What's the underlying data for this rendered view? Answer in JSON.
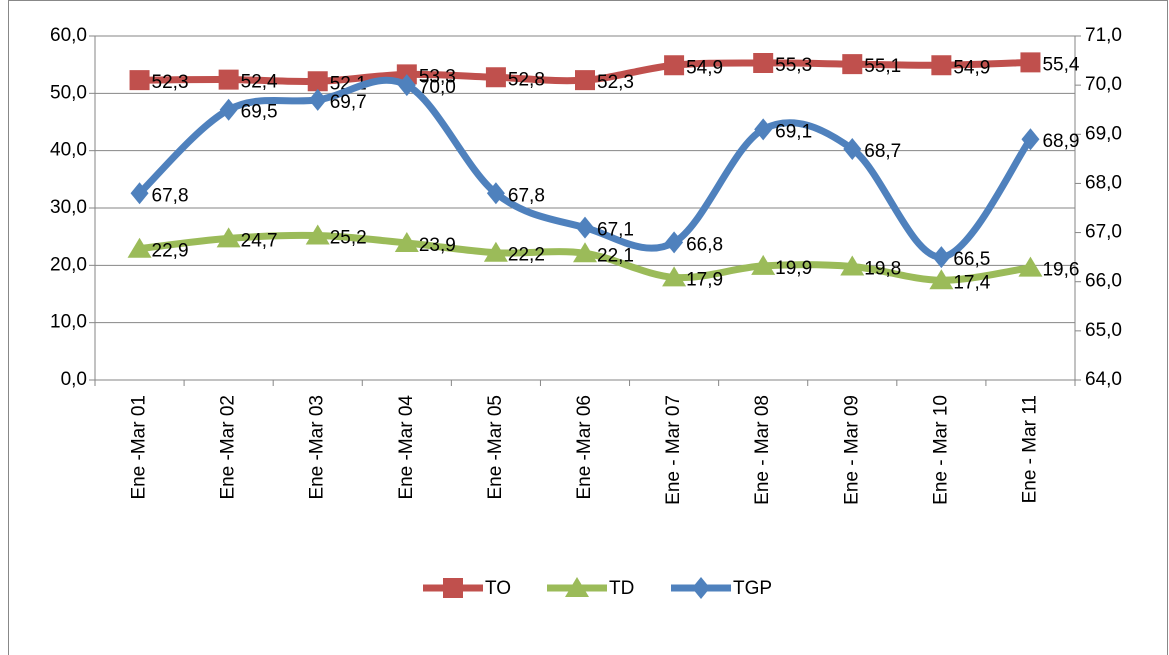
{
  "chart_data": {
    "type": "line",
    "smooth": true,
    "legend": "bottom",
    "grid": true,
    "categories": [
      "Ene -Mar 01",
      "Ene -Mar 02",
      "Ene -Mar 03",
      "Ene -Mar 04",
      "Ene -Mar 05",
      "Ene -Mar 06",
      "Ene - Mar 07",
      "Ene - Mar 08",
      "Ene - Mar 09",
      "Ene - Mar 10",
      "Ene - Mar 11"
    ],
    "ylim": [
      0,
      60
    ],
    "yticks": [
      {
        "value": 0,
        "label": "0,0"
      },
      {
        "value": 10,
        "label": "10,0"
      },
      {
        "value": 20,
        "label": "20,0"
      },
      {
        "value": 30,
        "label": "30,0"
      },
      {
        "value": 40,
        "label": "40,0"
      },
      {
        "value": 50,
        "label": "50,0"
      },
      {
        "value": 60,
        "label": "60,0"
      }
    ],
    "y2lim": [
      64,
      71
    ],
    "y2ticks": [
      {
        "value": 64,
        "label": "64,0"
      },
      {
        "value": 65,
        "label": "65,0"
      },
      {
        "value": 66,
        "label": "66,0"
      },
      {
        "value": 67,
        "label": "67,0"
      },
      {
        "value": 68,
        "label": "68,0"
      },
      {
        "value": 69,
        "label": "69,0"
      },
      {
        "value": 70,
        "label": "70,0"
      },
      {
        "value": 71,
        "label": "71,0"
      }
    ],
    "series": [
      {
        "name": "TO",
        "color": "#c0504d",
        "marker": "square",
        "values": [
          52.3,
          52.4,
          52.1,
          53.3,
          52.8,
          52.3,
          54.9,
          55.3,
          55.1,
          54.9,
          55.4
        ],
        "value_labels": [
          "52,3",
          "52,4",
          "52,1",
          "53,3",
          "52,8",
          "52,3",
          "54,9",
          "55,3",
          "55,1",
          "54,9",
          "55,4"
        ]
      },
      {
        "name": "TD",
        "color": "#9bbb59",
        "marker": "triangle",
        "values": [
          22.9,
          24.7,
          25.2,
          23.9,
          22.2,
          22.1,
          17.9,
          19.9,
          19.8,
          17.4,
          19.6
        ],
        "value_labels": [
          "22,9",
          "24,7",
          "25,2",
          "23,9",
          "22,2",
          "22,1",
          "17,9",
          "19,9",
          "19,8",
          "17,4",
          "19,6"
        ]
      },
      {
        "name": "TGP",
        "color": "#4f81bd",
        "marker": "diamond",
        "axis": "y2",
        "values": [
          67.8,
          69.5,
          69.7,
          70.0,
          67.8,
          67.1,
          66.8,
          69.1,
          68.7,
          66.5,
          68.9
        ],
        "value_labels": [
          "67,8",
          "69,5",
          "69,7",
          "70,0",
          "67,8",
          "67,1",
          "66,8",
          "69,1",
          "68,7",
          "66,5",
          "68,9"
        ]
      }
    ]
  }
}
